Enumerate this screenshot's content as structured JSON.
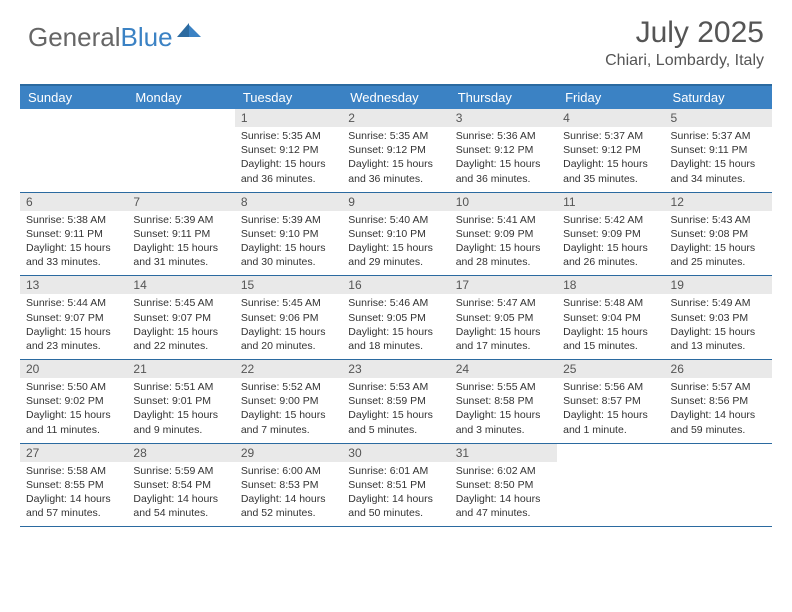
{
  "brand": {
    "part1": "General",
    "part2": "Blue"
  },
  "title": "July 2025",
  "location": "Chiari, Lombardy, Italy",
  "colors": {
    "header_bg": "#3b82c4",
    "border": "#2b6aa0",
    "daynum_bg": "#e9e9e9",
    "text": "#333333",
    "muted": "#666666"
  },
  "day_headers": [
    "Sunday",
    "Monday",
    "Tuesday",
    "Wednesday",
    "Thursday",
    "Friday",
    "Saturday"
  ],
  "weeks": [
    [
      {
        "n": "",
        "sr": "",
        "ss": "",
        "dl": ""
      },
      {
        "n": "",
        "sr": "",
        "ss": "",
        "dl": ""
      },
      {
        "n": "1",
        "sr": "Sunrise: 5:35 AM",
        "ss": "Sunset: 9:12 PM",
        "dl": "Daylight: 15 hours and 36 minutes."
      },
      {
        "n": "2",
        "sr": "Sunrise: 5:35 AM",
        "ss": "Sunset: 9:12 PM",
        "dl": "Daylight: 15 hours and 36 minutes."
      },
      {
        "n": "3",
        "sr": "Sunrise: 5:36 AM",
        "ss": "Sunset: 9:12 PM",
        "dl": "Daylight: 15 hours and 36 minutes."
      },
      {
        "n": "4",
        "sr": "Sunrise: 5:37 AM",
        "ss": "Sunset: 9:12 PM",
        "dl": "Daylight: 15 hours and 35 minutes."
      },
      {
        "n": "5",
        "sr": "Sunrise: 5:37 AM",
        "ss": "Sunset: 9:11 PM",
        "dl": "Daylight: 15 hours and 34 minutes."
      }
    ],
    [
      {
        "n": "6",
        "sr": "Sunrise: 5:38 AM",
        "ss": "Sunset: 9:11 PM",
        "dl": "Daylight: 15 hours and 33 minutes."
      },
      {
        "n": "7",
        "sr": "Sunrise: 5:39 AM",
        "ss": "Sunset: 9:11 PM",
        "dl": "Daylight: 15 hours and 31 minutes."
      },
      {
        "n": "8",
        "sr": "Sunrise: 5:39 AM",
        "ss": "Sunset: 9:10 PM",
        "dl": "Daylight: 15 hours and 30 minutes."
      },
      {
        "n": "9",
        "sr": "Sunrise: 5:40 AM",
        "ss": "Sunset: 9:10 PM",
        "dl": "Daylight: 15 hours and 29 minutes."
      },
      {
        "n": "10",
        "sr": "Sunrise: 5:41 AM",
        "ss": "Sunset: 9:09 PM",
        "dl": "Daylight: 15 hours and 28 minutes."
      },
      {
        "n": "11",
        "sr": "Sunrise: 5:42 AM",
        "ss": "Sunset: 9:09 PM",
        "dl": "Daylight: 15 hours and 26 minutes."
      },
      {
        "n": "12",
        "sr": "Sunrise: 5:43 AM",
        "ss": "Sunset: 9:08 PM",
        "dl": "Daylight: 15 hours and 25 minutes."
      }
    ],
    [
      {
        "n": "13",
        "sr": "Sunrise: 5:44 AM",
        "ss": "Sunset: 9:07 PM",
        "dl": "Daylight: 15 hours and 23 minutes."
      },
      {
        "n": "14",
        "sr": "Sunrise: 5:45 AM",
        "ss": "Sunset: 9:07 PM",
        "dl": "Daylight: 15 hours and 22 minutes."
      },
      {
        "n": "15",
        "sr": "Sunrise: 5:45 AM",
        "ss": "Sunset: 9:06 PM",
        "dl": "Daylight: 15 hours and 20 minutes."
      },
      {
        "n": "16",
        "sr": "Sunrise: 5:46 AM",
        "ss": "Sunset: 9:05 PM",
        "dl": "Daylight: 15 hours and 18 minutes."
      },
      {
        "n": "17",
        "sr": "Sunrise: 5:47 AM",
        "ss": "Sunset: 9:05 PM",
        "dl": "Daylight: 15 hours and 17 minutes."
      },
      {
        "n": "18",
        "sr": "Sunrise: 5:48 AM",
        "ss": "Sunset: 9:04 PM",
        "dl": "Daylight: 15 hours and 15 minutes."
      },
      {
        "n": "19",
        "sr": "Sunrise: 5:49 AM",
        "ss": "Sunset: 9:03 PM",
        "dl": "Daylight: 15 hours and 13 minutes."
      }
    ],
    [
      {
        "n": "20",
        "sr": "Sunrise: 5:50 AM",
        "ss": "Sunset: 9:02 PM",
        "dl": "Daylight: 15 hours and 11 minutes."
      },
      {
        "n": "21",
        "sr": "Sunrise: 5:51 AM",
        "ss": "Sunset: 9:01 PM",
        "dl": "Daylight: 15 hours and 9 minutes."
      },
      {
        "n": "22",
        "sr": "Sunrise: 5:52 AM",
        "ss": "Sunset: 9:00 PM",
        "dl": "Daylight: 15 hours and 7 minutes."
      },
      {
        "n": "23",
        "sr": "Sunrise: 5:53 AM",
        "ss": "Sunset: 8:59 PM",
        "dl": "Daylight: 15 hours and 5 minutes."
      },
      {
        "n": "24",
        "sr": "Sunrise: 5:55 AM",
        "ss": "Sunset: 8:58 PM",
        "dl": "Daylight: 15 hours and 3 minutes."
      },
      {
        "n": "25",
        "sr": "Sunrise: 5:56 AM",
        "ss": "Sunset: 8:57 PM",
        "dl": "Daylight: 15 hours and 1 minute."
      },
      {
        "n": "26",
        "sr": "Sunrise: 5:57 AM",
        "ss": "Sunset: 8:56 PM",
        "dl": "Daylight: 14 hours and 59 minutes."
      }
    ],
    [
      {
        "n": "27",
        "sr": "Sunrise: 5:58 AM",
        "ss": "Sunset: 8:55 PM",
        "dl": "Daylight: 14 hours and 57 minutes."
      },
      {
        "n": "28",
        "sr": "Sunrise: 5:59 AM",
        "ss": "Sunset: 8:54 PM",
        "dl": "Daylight: 14 hours and 54 minutes."
      },
      {
        "n": "29",
        "sr": "Sunrise: 6:00 AM",
        "ss": "Sunset: 8:53 PM",
        "dl": "Daylight: 14 hours and 52 minutes."
      },
      {
        "n": "30",
        "sr": "Sunrise: 6:01 AM",
        "ss": "Sunset: 8:51 PM",
        "dl": "Daylight: 14 hours and 50 minutes."
      },
      {
        "n": "31",
        "sr": "Sunrise: 6:02 AM",
        "ss": "Sunset: 8:50 PM",
        "dl": "Daylight: 14 hours and 47 minutes."
      },
      {
        "n": "",
        "sr": "",
        "ss": "",
        "dl": ""
      },
      {
        "n": "",
        "sr": "",
        "ss": "",
        "dl": ""
      }
    ]
  ]
}
